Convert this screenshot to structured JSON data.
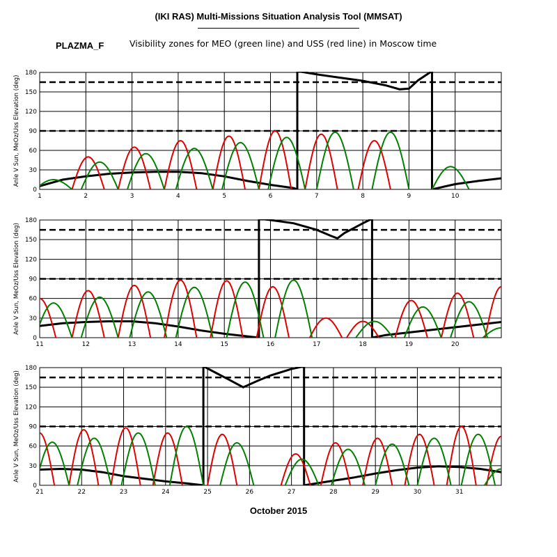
{
  "header": {
    "title": "(IKI RAS) Multi-Missions Situation Analysis Tool (MMSAT)",
    "satellite": "PLAZMA_F",
    "subtitle": "Visibility zones for MEO (green line) and USS (red line) in Moscow time"
  },
  "footer": {
    "month_label": "October 2015"
  },
  "colors": {
    "meo": "#008000",
    "uss": "#e00000",
    "sun": "#000000",
    "grid": "#000000"
  },
  "chart_data": [
    {
      "type": "line",
      "panel": "days-1-11",
      "xlim": [
        1,
        11
      ],
      "ylim": [
        0,
        180
      ],
      "ylabel": "Anle V Sun, MeOz/Uss Elevation (deg)",
      "x_ticks": [
        "1",
        "2",
        "3",
        "4",
        "5",
        "6",
        "7",
        "8",
        "9",
        "10"
      ],
      "y_ticks": [
        "0",
        "30",
        "60",
        "90",
        "120",
        "150",
        "180"
      ],
      "reference_lines": [
        90,
        165
      ],
      "series": [
        {
          "key": "sun",
          "x": [
            1,
            1.5,
            2,
            2.5,
            3,
            3.5,
            4,
            4.5,
            5,
            5.5,
            6,
            6.5,
            6.58
          ],
          "y": [
            5,
            15,
            20,
            24,
            26,
            27,
            27,
            25,
            20,
            13,
            7,
            2,
            0
          ]
        },
        {
          "key": "sun",
          "x": [
            6.58,
            6.58,
            7,
            7.5,
            8,
            8.5,
            8.8,
            9,
            9.2,
            9.5,
            9.5
          ],
          "y": [
            0,
            182,
            177,
            172,
            167,
            160,
            154,
            155,
            168,
            182,
            0
          ]
        },
        {
          "key": "sun",
          "x": [
            9.5,
            10,
            10.5,
            11
          ],
          "y": [
            0,
            8,
            13,
            17
          ]
        },
        {
          "key": "uss",
          "peaks": [
            [
              2.05,
              50
            ],
            [
              3.05,
              65
            ],
            [
              4.05,
              75
            ],
            [
              5.1,
              82
            ],
            [
              6.1,
              90
            ],
            [
              7.1,
              85
            ],
            [
              8.25,
              75
            ]
          ],
          "half_width": 0.35
        },
        {
          "key": "meo",
          "peaks": [
            [
              1.3,
              15
            ],
            [
              2.3,
              42
            ],
            [
              3.3,
              55
            ],
            [
              4.35,
              63
            ],
            [
              5.35,
              72
            ],
            [
              6.35,
              80
            ],
            [
              7.4,
              88
            ],
            [
              8.6,
              88
            ],
            [
              9.9,
              35
            ]
          ],
          "half_width": 0.4
        }
      ]
    },
    {
      "type": "line",
      "panel": "days-11-21",
      "xlim": [
        11,
        21
      ],
      "ylim": [
        0,
        180
      ],
      "ylabel": "Anle V Sun, MeOz/Uss Elevation (deg)",
      "x_ticks": [
        "11",
        "12",
        "13",
        "14",
        "15",
        "16",
        "17",
        "18",
        "19",
        "20"
      ],
      "y_ticks": [
        "0",
        "30",
        "60",
        "90",
        "120",
        "150",
        "180"
      ],
      "reference_lines": [
        90,
        165
      ],
      "series": [
        {
          "key": "sun",
          "x": [
            11,
            11.5,
            12,
            12.5,
            13,
            13.5,
            14,
            14.5,
            15,
            15.5,
            15.75
          ],
          "y": [
            18,
            22,
            24,
            25,
            25,
            22,
            17,
            11,
            6,
            2,
            0
          ]
        },
        {
          "key": "sun",
          "x": [
            15.75,
            15.75,
            16,
            16.5,
            17,
            17.3,
            17.45,
            17.6,
            18,
            18.2,
            18.2
          ],
          "y": [
            0,
            182,
            180,
            175,
            165,
            156,
            152,
            160,
            175,
            182,
            0
          ]
        },
        {
          "key": "sun",
          "x": [
            18.2,
            18.5,
            19,
            19.5,
            20,
            20.5,
            21
          ],
          "y": [
            0,
            4,
            8,
            12,
            16,
            20,
            24
          ]
        },
        {
          "key": "uss",
          "peaks": [
            [
              11,
              60
            ],
            [
              12.05,
              72
            ],
            [
              13.05,
              80
            ],
            [
              14.05,
              88
            ],
            [
              15.05,
              87
            ],
            [
              16.05,
              78
            ],
            [
              17.2,
              30
            ],
            [
              18,
              25
            ],
            [
              19.05,
              57
            ],
            [
              20.05,
              68
            ],
            [
              21,
              78
            ]
          ],
          "half_width": 0.35
        },
        {
          "key": "meo",
          "peaks": [
            [
              11.3,
              53
            ],
            [
              12.3,
              62
            ],
            [
              13.35,
              70
            ],
            [
              14.35,
              77
            ],
            [
              15.45,
              85
            ],
            [
              16.5,
              88
            ],
            [
              18.25,
              25
            ],
            [
              19.3,
              47
            ],
            [
              20.3,
              55
            ],
            [
              21,
              15
            ]
          ],
          "half_width": 0.4
        }
      ]
    },
    {
      "type": "line",
      "panel": "days-21-32",
      "xlim": [
        21,
        32
      ],
      "ylim": [
        0,
        180
      ],
      "ylabel": "Anle V Sun, MeOz/Uss Elevation (deg)",
      "x_ticks": [
        "21",
        "22",
        "23",
        "24",
        "25",
        "26",
        "27",
        "28",
        "29",
        "30",
        "31"
      ],
      "y_ticks": [
        "0",
        "30",
        "60",
        "90",
        "120",
        "150",
        "180"
      ],
      "reference_lines": [
        90,
        165
      ],
      "series": [
        {
          "key": "sun",
          "x": [
            21,
            21.5,
            22,
            22.5,
            23,
            23.5,
            24,
            24.5,
            24.9
          ],
          "y": [
            24,
            25,
            24,
            20,
            14,
            10,
            6,
            3,
            0
          ]
        },
        {
          "key": "sun",
          "x": [
            24.9,
            24.9,
            25.2,
            25.5,
            25.85,
            26.2,
            26.5,
            27,
            27.3,
            27.3
          ],
          "y": [
            0,
            182,
            172,
            162,
            150,
            160,
            168,
            178,
            182,
            0
          ]
        },
        {
          "key": "sun",
          "x": [
            27.3,
            27.5,
            28,
            28.5,
            29,
            29.5,
            30,
            30.5,
            31,
            31.5,
            32
          ],
          "y": [
            0,
            2,
            7,
            12,
            18,
            23,
            27,
            29,
            28,
            25,
            20
          ]
        },
        {
          "key": "uss",
          "peaks": [
            [
              21,
              80
            ],
            [
              22.05,
              85
            ],
            [
              23.05,
              88
            ],
            [
              24.05,
              80
            ],
            [
              25.35,
              78
            ],
            [
              27.1,
              48
            ],
            [
              28.05,
              65
            ],
            [
              29.05,
              72
            ],
            [
              30.05,
              78
            ],
            [
              31.05,
              90
            ],
            [
              32,
              75
            ]
          ],
          "half_width": 0.35
        },
        {
          "key": "meo",
          "peaks": [
            [
              21.3,
              66
            ],
            [
              22.3,
              72
            ],
            [
              23.35,
              80
            ],
            [
              24.5,
              90
            ],
            [
              25.7,
              65
            ],
            [
              27.25,
              40
            ],
            [
              28.35,
              55
            ],
            [
              29.4,
              63
            ],
            [
              30.4,
              72
            ],
            [
              31.45,
              78
            ],
            [
              32,
              25
            ]
          ],
          "half_width": 0.4
        }
      ]
    }
  ]
}
